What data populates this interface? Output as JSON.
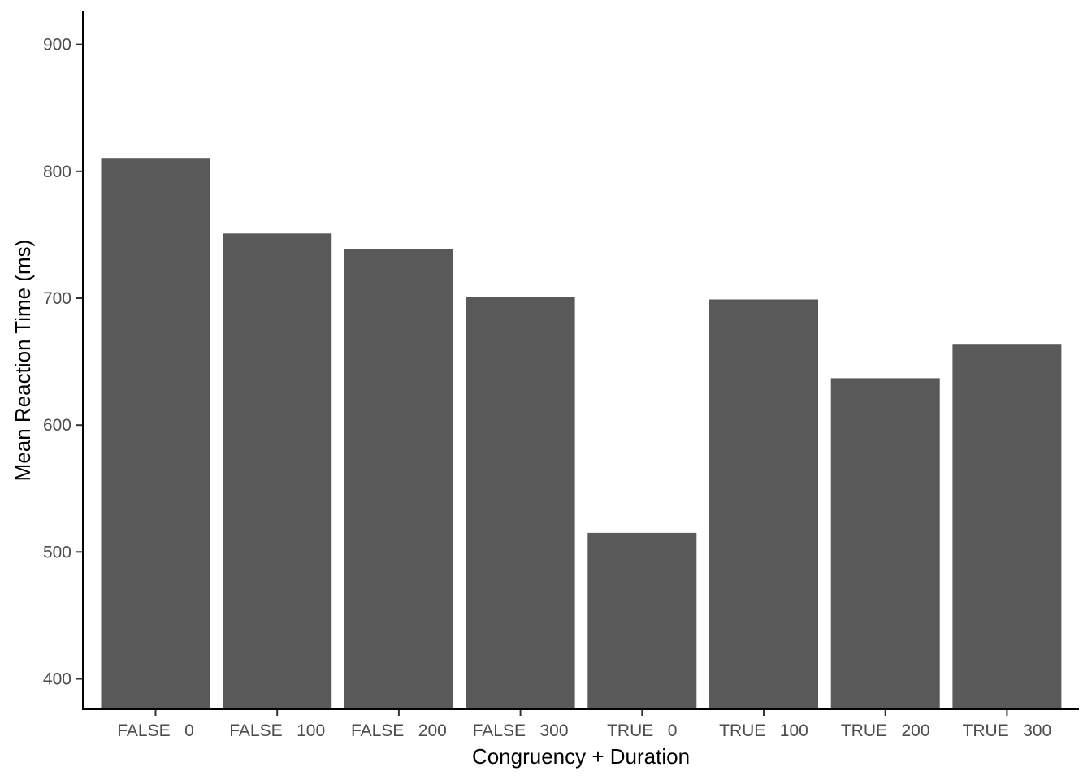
{
  "chart_data": {
    "type": "bar",
    "title": "",
    "xlabel": "Congruency + Duration",
    "ylabel": "Mean Reaction Time (ms)",
    "categories": [
      "FALSE   0",
      "FALSE   100",
      "FALSE   200",
      "FALSE   300",
      "TRUE   0",
      "TRUE   100",
      "TRUE   200",
      "TRUE   300"
    ],
    "values": [
      810,
      751,
      739,
      701,
      515,
      699,
      637,
      664
    ],
    "ylim": [
      376,
      926
    ],
    "yticks": [
      400,
      500,
      600,
      700,
      800,
      900
    ],
    "grid": false,
    "legend": "none",
    "colors": {
      "bar": "#595959",
      "axis": "#000000",
      "tick_text": "#4d4d4d",
      "background": "#ffffff"
    }
  }
}
